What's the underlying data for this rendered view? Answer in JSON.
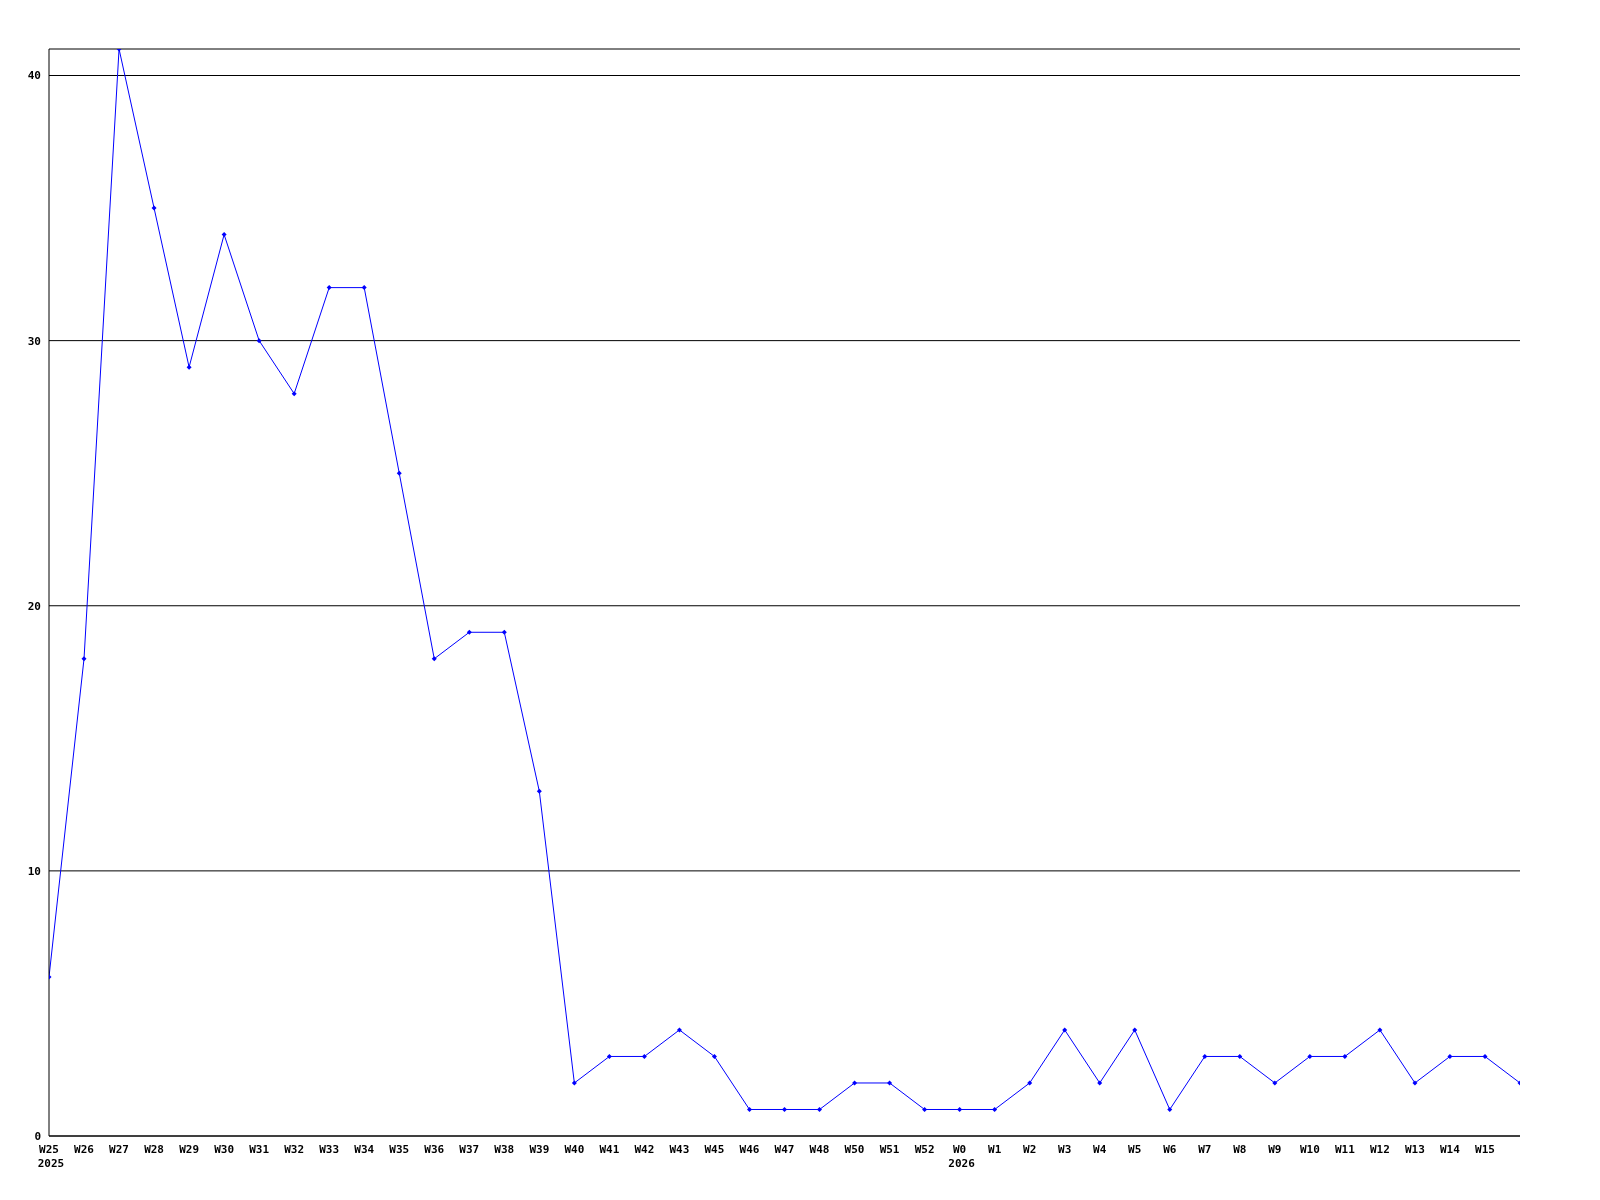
{
  "chart_data": {
    "type": "line",
    "categories": [
      "W25\n2025",
      "W26",
      "W27",
      "W28",
      "W29",
      "W30",
      "W31",
      "W32",
      "W33",
      "W34",
      "W35",
      "W36",
      "W37",
      "W38",
      "W39",
      "W40",
      "W41",
      "W42",
      "W43",
      "W45",
      "W46",
      "W47",
      "W48",
      "W50",
      "W51",
      "W52",
      "W0\n2026",
      "W1",
      "W2",
      "W3",
      "W4",
      "W5",
      "W6",
      "W7",
      "W8",
      "W9",
      "W10",
      "W11",
      "W12",
      "W13",
      "W14",
      "W15",
      null
    ],
    "series": [
      {
        "color": "#0000ff",
        "values": [
          6,
          18,
          41,
          35,
          29,
          34,
          30,
          28,
          32,
          32,
          25,
          18,
          19,
          19,
          13,
          2,
          3,
          3,
          4,
          3,
          1,
          1,
          1,
          2,
          2,
          1,
          1,
          1,
          2,
          4,
          2,
          4,
          1,
          3,
          3,
          2,
          3,
          3,
          4,
          2,
          3,
          3,
          2
        ]
      }
    ],
    "ylim": [
      0,
      41
    ],
    "yticks": [
      0,
      10,
      20,
      30,
      40
    ],
    "grid": "y",
    "marker": "diamond",
    "line_style": "solid"
  }
}
